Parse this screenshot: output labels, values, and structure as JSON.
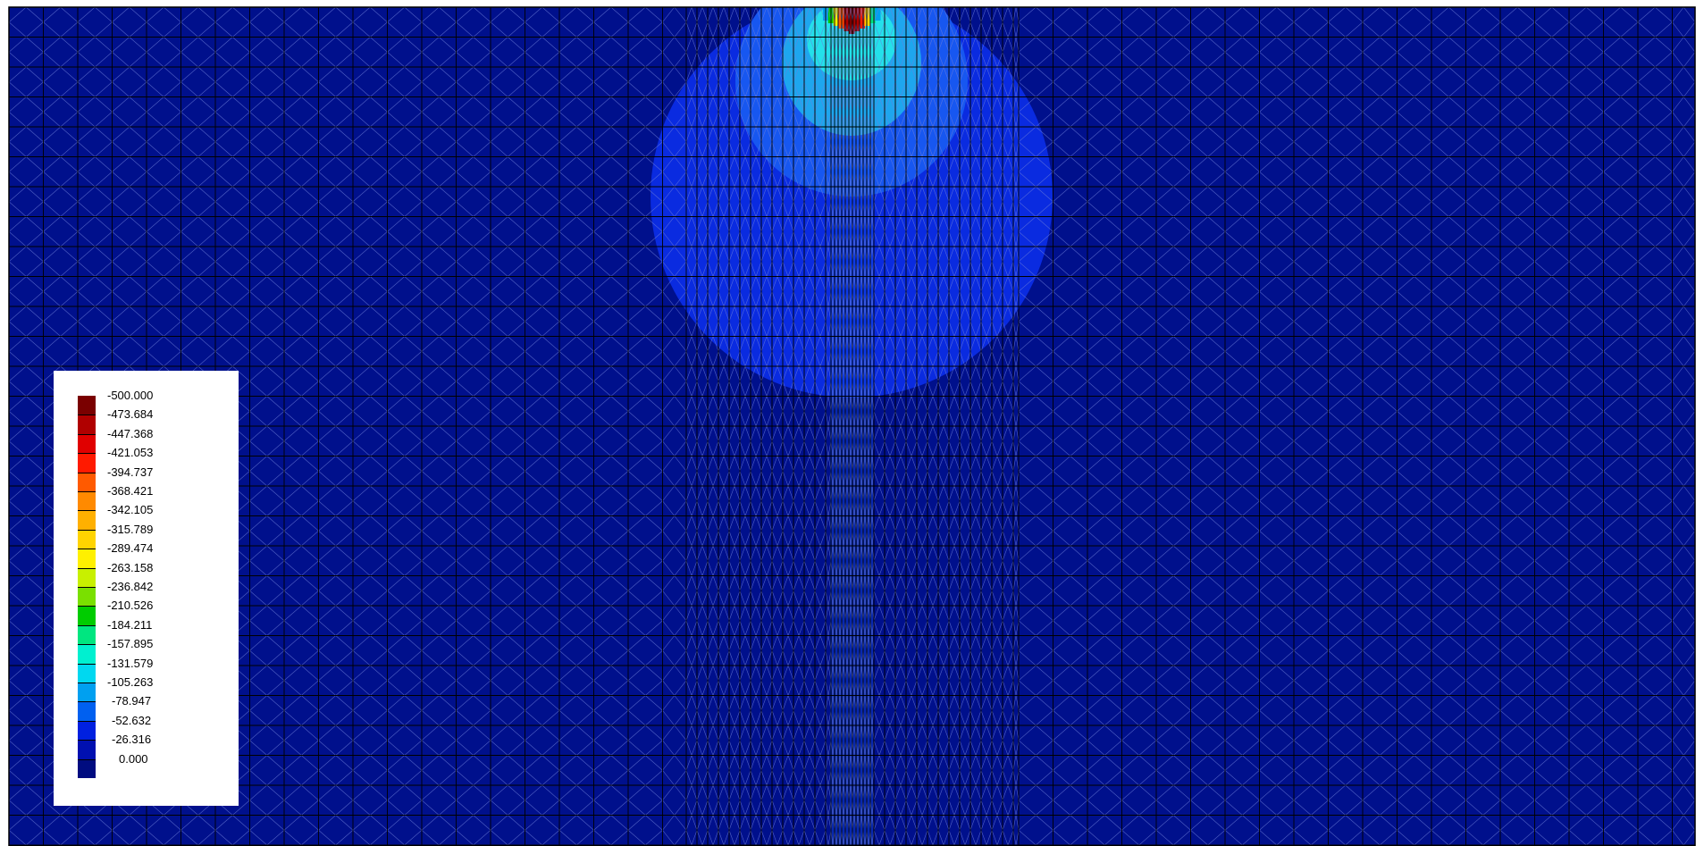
{
  "figure": {
    "background_color": "#00108c",
    "mesh_line_color": "#000000",
    "element_edge_color": "#6e7fd8",
    "contour_zones": [
      {
        "name": "outer-bulb",
        "color": "#0a2be0"
      },
      {
        "name": "mid-bulb",
        "color": "#1757f0"
      },
      {
        "name": "inner-bulb",
        "color": "#1ea6ee"
      },
      {
        "name": "core",
        "color": "#24e0ea"
      },
      {
        "name": "peak",
        "color": "#8b0000"
      }
    ]
  },
  "legend": {
    "entries": [
      {
        "label": "-500.000",
        "color": "#7a0000"
      },
      {
        "label": "-473.684",
        "color": "#b00000"
      },
      {
        "label": "-447.368",
        "color": "#e00000"
      },
      {
        "label": "-421.053",
        "color": "#ff1a00"
      },
      {
        "label": "-394.737",
        "color": "#ff5a00"
      },
      {
        "label": "-368.421",
        "color": "#ff8a00"
      },
      {
        "label": "-342.105",
        "color": "#ffb000"
      },
      {
        "label": "-315.789",
        "color": "#ffd400"
      },
      {
        "label": "-289.474",
        "color": "#fff000"
      },
      {
        "label": "-263.158",
        "color": "#c8f000"
      },
      {
        "label": "-236.842",
        "color": "#7ae000"
      },
      {
        "label": "-210.526",
        "color": "#00cc00"
      },
      {
        "label": "-184.211",
        "color": "#00e680"
      },
      {
        "label": "-157.895",
        "color": "#00f0d0"
      },
      {
        "label": "-131.579",
        "color": "#00d8f0"
      },
      {
        "label": "-105.263",
        "color": "#00a0f0"
      },
      {
        "label": "-78.947",
        "color": "#0060f0"
      },
      {
        "label": "-52.632",
        "color": "#0020e0"
      },
      {
        "label": "-26.316",
        "color": "#0010b0"
      },
      {
        "label": "0.000",
        "color": "#000c80"
      }
    ]
  }
}
